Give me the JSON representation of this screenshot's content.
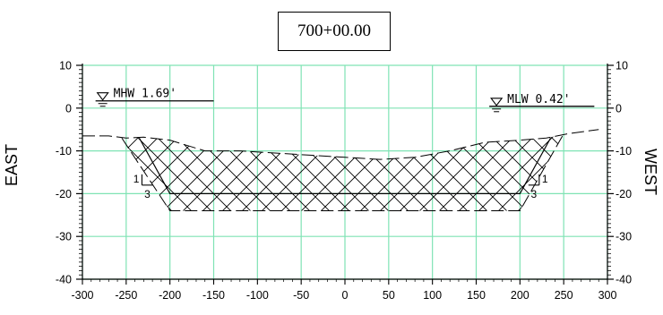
{
  "station": "700+00.00",
  "left_axis_label": "EAST",
  "right_axis_label": "WEST",
  "chart_data": {
    "type": "line",
    "xlim": [
      -300,
      300
    ],
    "ylim": [
      -40,
      10
    ],
    "x_ticks": [
      -300,
      -250,
      -200,
      -150,
      -100,
      -50,
      0,
      50,
      100,
      150,
      200,
      250,
      300
    ],
    "y_ticks": [
      10,
      0,
      -10,
      -20,
      -30,
      -40
    ],
    "x_tick_labels": [
      "-300",
      "-250",
      "-200",
      "-150",
      "-100",
      "-50",
      "0",
      "50",
      "100",
      "150",
      "200",
      "250",
      "300"
    ],
    "y_tick_labels": [
      "10",
      "0",
      "-10",
      "-20",
      "-30",
      "-40"
    ],
    "grid": true,
    "grid_color": "#7fe3b4",
    "water_levels": [
      {
        "label": "MHW",
        "value_text": "1.69'",
        "elevation": 1.69,
        "x_from": -285,
        "x_to": -150
      },
      {
        "label": "MLW",
        "value_text": "0.42'",
        "elevation": 0.42,
        "x_from": 165,
        "x_to": 285
      }
    ],
    "existing_ground": {
      "x": [
        -300,
        -270,
        -250,
        -230,
        -200,
        -160,
        -120,
        -80,
        -40,
        0,
        40,
        80,
        120,
        160,
        200,
        230,
        255,
        290
      ],
      "y": [
        -6.5,
        -6.5,
        -7,
        -6.8,
        -7.5,
        -10,
        -10,
        -10.5,
        -11,
        -11.5,
        -12,
        -11.5,
        -10,
        -8,
        -7.5,
        -7,
        -6,
        -5
      ]
    },
    "design_channel": {
      "x": [
        -235,
        -200,
        200,
        235
      ],
      "y": [
        -7,
        -20,
        -20,
        -7
      ]
    },
    "overdredge": {
      "x": [
        -255,
        -200,
        200,
        250
      ],
      "y": [
        -7,
        -24,
        -24,
        -6
      ]
    },
    "side_slopes": [
      {
        "rise": "1",
        "run": "3",
        "side": "left"
      },
      {
        "rise": "1",
        "run": "3",
        "side": "right"
      }
    ]
  }
}
